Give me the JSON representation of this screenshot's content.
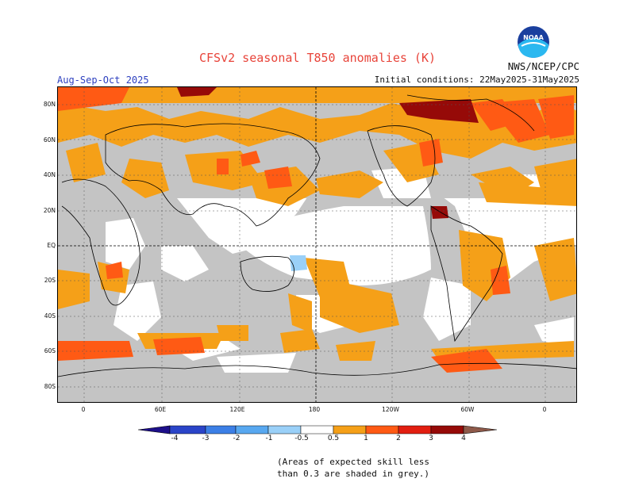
{
  "title": "CFSv2 seasonal T850 anomalies (K)",
  "agency": "NWS/NCEP/CPC",
  "season": "Aug-Sep-Oct 2025",
  "initial_conditions": "Initial conditions: 22May2025-31May2025",
  "logo_text": "NOAA",
  "lat_labels": [
    "80N",
    "60N",
    "40N",
    "20N",
    "EQ",
    "20S",
    "40S",
    "60S",
    "80S"
  ],
  "lon_labels": [
    "0",
    "60E",
    "120E",
    "180",
    "120W",
    "60W",
    "0"
  ],
  "colorbar": {
    "labels": [
      "-4",
      "-3",
      "-2",
      "-1",
      "-0.5",
      "0.5",
      "1",
      "2",
      "3",
      "4"
    ],
    "colors": [
      "#1d0f8a",
      "#2a44c8",
      "#3c7fe6",
      "#58a8f0",
      "#9ad0f8",
      "#ffffff",
      "#f5a018",
      "#ff5a14",
      "#e21e10",
      "#960a08",
      "#d8a898",
      "#8e5a4a"
    ]
  },
  "note": {
    "line1": "(Areas of expected skill less",
    "line2": "than 0.3 are shaded in grey.)"
  },
  "colors": {
    "grey": "#c4c4c4",
    "orange": "#f5a018",
    "red_orange": "#ff5a14",
    "red": "#e21e10",
    "dark_red": "#960a08",
    "light_blue": "#9ad0f8"
  }
}
